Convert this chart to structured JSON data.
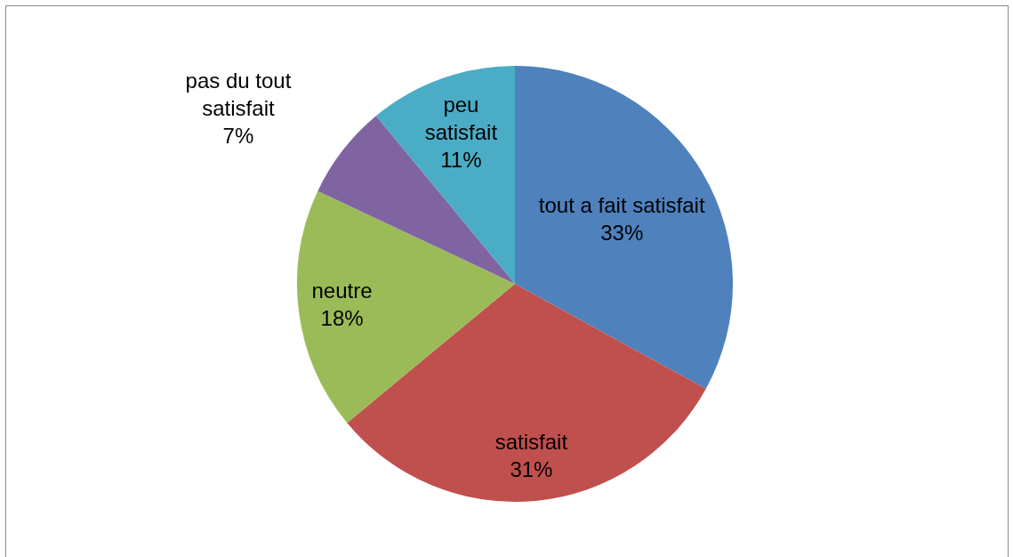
{
  "chart_data": {
    "type": "pie",
    "categories": [
      "tout a fait satisfait",
      "satisfait",
      "neutre",
      "pas du tout satisfait",
      "peu satisfait"
    ],
    "values": [
      33,
      31,
      18,
      7,
      11
    ],
    "colors": [
      "#4f81bd",
      "#c0504d",
      "#9bbb59",
      "#8064a2",
      "#4bacc6"
    ],
    "value_labels": [
      "33%",
      "31%",
      "18%",
      "7%",
      "11%"
    ]
  }
}
